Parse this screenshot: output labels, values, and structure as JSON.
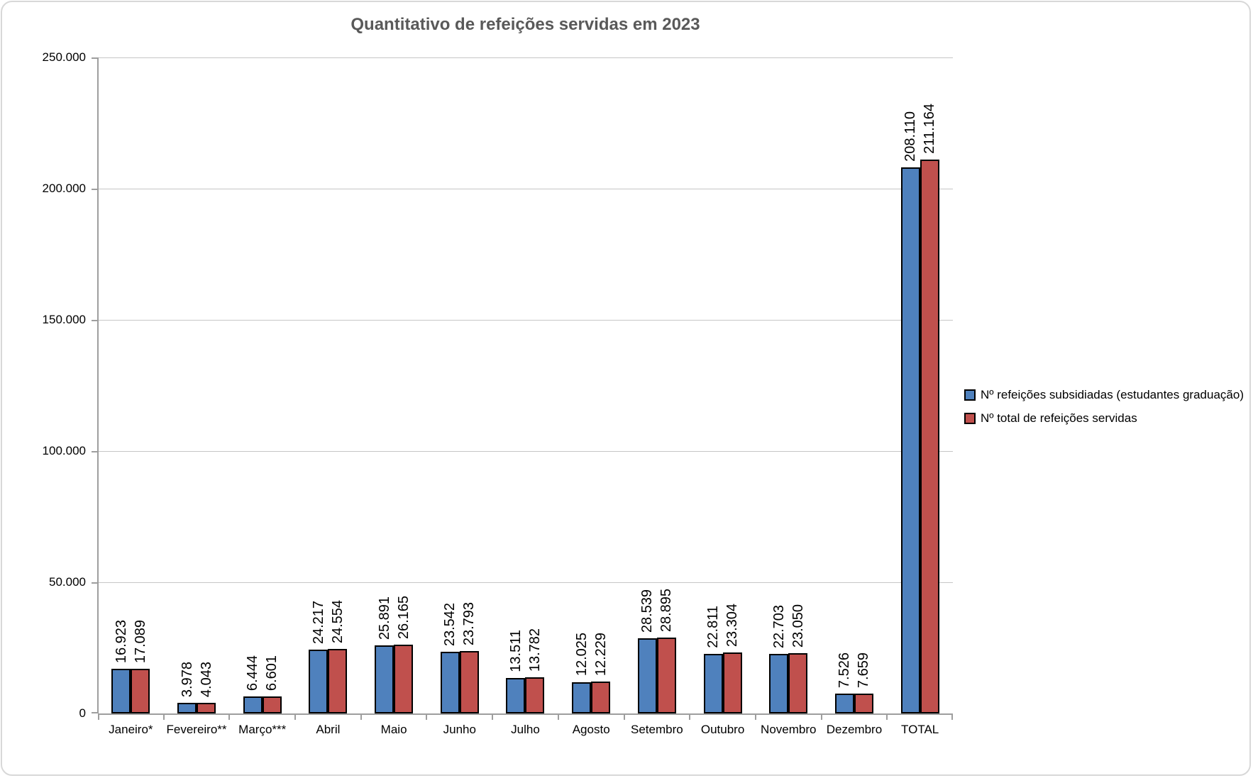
{
  "title": "Quantitativo de refeições servidas em 2023",
  "y_axis": {
    "ticks": [
      "250.000",
      "200.000",
      "150.000",
      "100.000",
      "50.000",
      "0"
    ]
  },
  "legend": {
    "items": [
      {
        "label": "Nº refeições subsidiadas (estudantes graduação)",
        "color": "#4F81BD"
      },
      {
        "label": "Nº total de refeições servidas",
        "color": "#C0504D"
      }
    ]
  },
  "colors": {
    "series1": "#4F81BD",
    "series2": "#C0504D",
    "bar_border": "#000000",
    "gridline": "#C6C6C6",
    "axis": "#9E9E9E",
    "title_text": "#595959",
    "frame_border": "#D8D8D8"
  },
  "chart_data": {
    "type": "bar",
    "title": "Quantitativo de refeições servidas em 2023",
    "categories": [
      "Janeiro*",
      "Fevereiro**",
      "Março***",
      "Abril",
      "Maio",
      "Junho",
      "Julho",
      "Agosto",
      "Setembro",
      "Outubro",
      "Novembro",
      "Dezembro",
      "TOTAL"
    ],
    "series": [
      {
        "name": "Nº refeições subsidiadas (estudantes graduação)",
        "color": "#4F81BD",
        "values": [
          16923,
          3978,
          6444,
          24217,
          25891,
          23542,
          13511,
          12025,
          28539,
          22811,
          22703,
          7526,
          208110
        ],
        "labels": [
          "16.923",
          "3.978",
          "6.444",
          "24.217",
          "25.891",
          "23.542",
          "13.511",
          "12.025",
          "28.539",
          "22.811",
          "22.703",
          "7.526",
          "208.110"
        ]
      },
      {
        "name": "Nº total de refeições servidas",
        "color": "#C0504D",
        "values": [
          17089,
          4043,
          6601,
          24554,
          26165,
          23793,
          13782,
          12229,
          28895,
          23304,
          23050,
          7659,
          211164
        ],
        "labels": [
          "17.089",
          "4.043",
          "6.601",
          "24.554",
          "26.165",
          "23.793",
          "13.782",
          "12.229",
          "28.895",
          "23.304",
          "23.050",
          "7.659",
          "211.164"
        ]
      }
    ],
    "xlabel": "",
    "ylabel": "",
    "ylim": [
      0,
      250000
    ],
    "y_tick_step": 50000,
    "grid": true,
    "legend_position": "right",
    "data_labels": "rotated-90-above-bars"
  }
}
